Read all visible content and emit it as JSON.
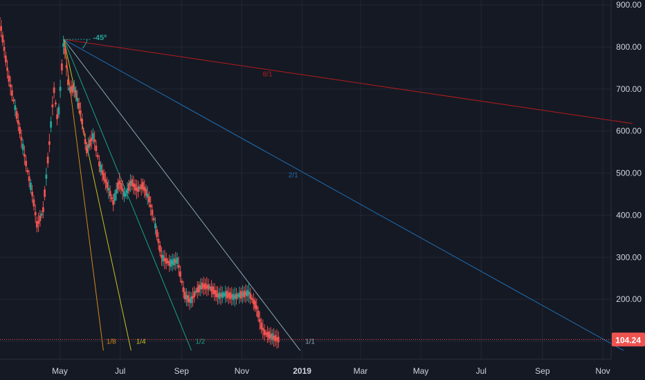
{
  "chart_data": {
    "type": "candlestick",
    "y_axis": {
      "ticks": [
        200,
        300,
        400,
        500,
        600,
        700,
        800,
        900
      ],
      "tick_labels": [
        "200.00",
        "300.00",
        "400.00",
        "500.00",
        "600.00",
        "700.00",
        "800.00",
        "900.00"
      ],
      "range": [
        78,
        925
      ]
    },
    "x_axis": {
      "ticks": [
        {
          "label": "May",
          "date": "2018-05",
          "bold": false
        },
        {
          "label": "Jul",
          "date": "2018-07",
          "bold": false
        },
        {
          "label": "Sep",
          "date": "2018-09",
          "bold": false
        },
        {
          "label": "Nov",
          "date": "2018-11",
          "bold": false
        },
        {
          "label": "2019",
          "date": "2019-01",
          "bold": true
        },
        {
          "label": "Mar",
          "date": "2019-03",
          "bold": false
        },
        {
          "label": "May",
          "date": "2019-05",
          "bold": false
        },
        {
          "label": "Jul",
          "date": "2019-07",
          "bold": false
        },
        {
          "label": "Sep",
          "date": "2019-09",
          "bold": false
        },
        {
          "label": "Nov",
          "date": "2019-11",
          "bold": false
        }
      ]
    },
    "last_price": {
      "value": 104.24,
      "label": "104.24"
    },
    "series_points": [
      [
        "2018-03-01",
        868
      ],
      [
        "2018-03-10",
        730
      ],
      [
        "2018-03-20",
        620
      ],
      [
        "2018-03-28",
        520
      ],
      [
        "2018-04-04",
        440
      ],
      [
        "2018-04-08",
        375
      ],
      [
        "2018-04-14",
        410
      ],
      [
        "2018-04-20",
        560
      ],
      [
        "2018-04-25",
        700
      ],
      [
        "2018-04-29",
        620
      ],
      [
        "2018-05-05",
        818
      ],
      [
        "2018-05-10",
        700
      ],
      [
        "2018-05-16",
        700
      ],
      [
        "2018-05-22",
        645
      ],
      [
        "2018-05-28",
        555
      ],
      [
        "2018-06-04",
        590
      ],
      [
        "2018-06-10",
        520
      ],
      [
        "2018-06-18",
        470
      ],
      [
        "2018-06-24",
        430
      ],
      [
        "2018-06-30",
        480
      ],
      [
        "2018-07-06",
        445
      ],
      [
        "2018-07-12",
        480
      ],
      [
        "2018-07-18",
        460
      ],
      [
        "2018-07-24",
        470
      ],
      [
        "2018-07-30",
        440
      ],
      [
        "2018-08-06",
        370
      ],
      [
        "2018-08-12",
        300
      ],
      [
        "2018-08-20",
        285
      ],
      [
        "2018-08-28",
        292
      ],
      [
        "2018-09-04",
        210
      ],
      [
        "2018-09-10",
        195
      ],
      [
        "2018-09-16",
        220
      ],
      [
        "2018-09-22",
        232
      ],
      [
        "2018-09-30",
        228
      ],
      [
        "2018-10-08",
        208
      ],
      [
        "2018-10-16",
        212
      ],
      [
        "2018-10-24",
        205
      ],
      [
        "2018-10-30",
        210
      ],
      [
        "2018-11-08",
        215
      ],
      [
        "2018-11-16",
        180
      ],
      [
        "2018-11-20",
        140
      ],
      [
        "2018-11-24",
        120
      ],
      [
        "2018-11-28",
        115
      ],
      [
        "2018-12-04",
        108
      ],
      [
        "2018-12-08",
        104
      ]
    ],
    "gann_fan": {
      "origin": {
        "date": "2018-05-05",
        "value": 818
      },
      "angle_label": "-45º",
      "lines": [
        {
          "label": "8/1",
          "color": "#b71c1c",
          "end": {
            "date": "2019-12-01",
            "value": 618
          },
          "label_pos": {
            "date": "2018-11-27",
            "value": 730
          }
        },
        {
          "label": "2/1",
          "color": "#1e6fb3",
          "end": {
            "date": "2019-11-22",
            "value": 78
          },
          "label_pos": {
            "date": "2018-12-23",
            "value": 490
          }
        },
        {
          "label": "1/1",
          "color": "#8ea8b5",
          "end": {
            "date": "2018-12-30",
            "value": 78
          },
          "label_pos": {
            "date": "2019-01-09",
            "value": 94
          }
        },
        {
          "label": "1/2",
          "color": "#17a589",
          "end": {
            "date": "2018-09-11",
            "value": 78
          },
          "label_pos": {
            "date": "2018-09-20",
            "value": 94
          }
        },
        {
          "label": "1/4",
          "color": "#c9c220",
          "end": {
            "date": "2018-07-12",
            "value": 78
          },
          "label_pos": {
            "date": "2018-07-22",
            "value": 94
          }
        },
        {
          "label": "1/8",
          "color": "#d48a1a",
          "end": {
            "date": "2018-06-14",
            "value": 78
          },
          "label_pos": {
            "date": "2018-06-22",
            "value": 94
          }
        }
      ]
    }
  }
}
